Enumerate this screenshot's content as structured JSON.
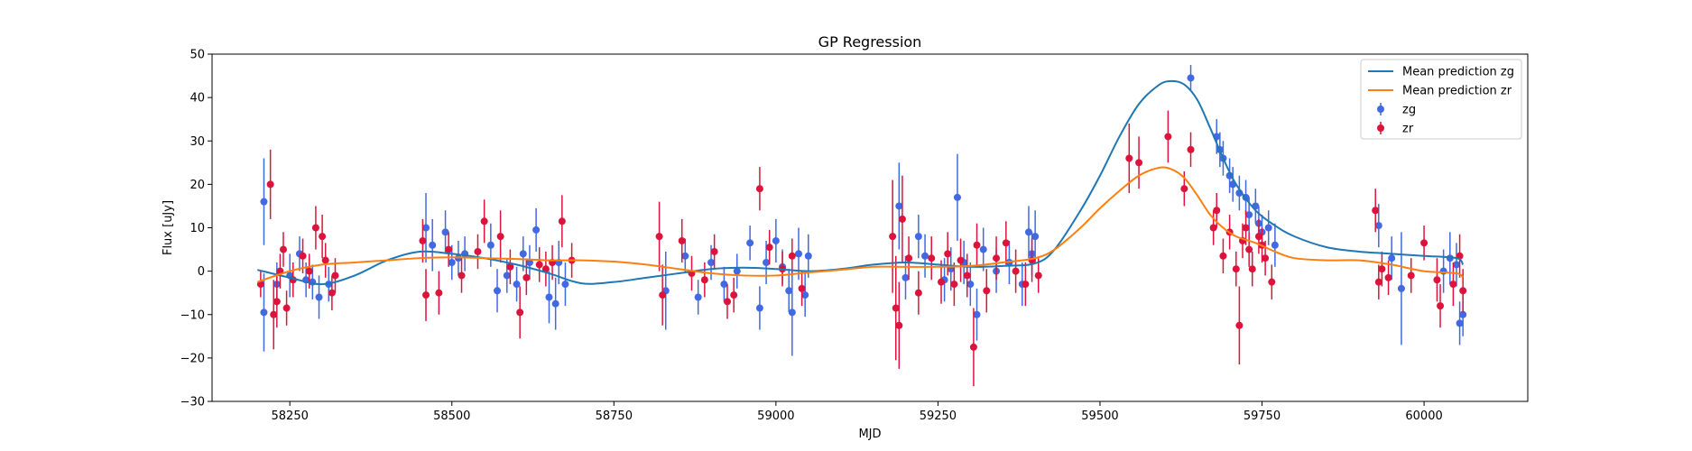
{
  "chart_data": {
    "type": "scatter",
    "title": "GP Regression",
    "xlabel": "MJD",
    "ylabel": "Flux [uJy]",
    "xlim": [
      58130,
      60160
    ],
    "ylim": [
      -30,
      50
    ],
    "xticks": [
      58250,
      58500,
      58750,
      59000,
      59250,
      59500,
      59750,
      60000
    ],
    "yticks": [
      -30,
      -20,
      -10,
      0,
      10,
      20,
      30,
      40,
      50
    ],
    "grid": false,
    "legend_position": "top-right",
    "legend": [
      "Mean prediction zg",
      "Mean prediction zr",
      "zg",
      "zr"
    ],
    "colors": {
      "zg_line": "#1f77b4",
      "zr_line": "#ff7f0e",
      "zg_points": "#4169e1",
      "zr_points": "#dc143c"
    },
    "series": [
      {
        "name": "Mean prediction zg",
        "kind": "line",
        "color": "#1f77b4",
        "x": [
          58200,
          58250,
          58300,
          58350,
          58400,
          58450,
          58500,
          58550,
          58600,
          58650,
          58700,
          58750,
          58800,
          58850,
          58900,
          58950,
          59000,
          59050,
          59100,
          59150,
          59200,
          59250,
          59300,
          59350,
          59400,
          59430,
          59470,
          59500,
          59530,
          59560,
          59590,
          59610,
          59630,
          59650,
          59670,
          59690,
          59710,
          59740,
          59770,
          59800,
          59850,
          59900,
          59950,
          60000,
          60050,
          60060
        ],
        "y": [
          0.3,
          -1.5,
          -3,
          -1,
          2.5,
          4.5,
          4,
          3,
          1.5,
          -0.5,
          -2.8,
          -2.5,
          -1.5,
          -0.5,
          0.5,
          0.8,
          0.5,
          0,
          0.5,
          1.5,
          2,
          1.5,
          1,
          1.2,
          1.8,
          5,
          14,
          22,
          31,
          38.5,
          42.8,
          43.8,
          43,
          39.5,
          33,
          26,
          20,
          14,
          10.5,
          8,
          5.5,
          4.5,
          4,
          3.5,
          3,
          1.5
        ]
      },
      {
        "name": "Mean prediction zr",
        "kind": "line",
        "color": "#ff7f0e",
        "x": [
          58200,
          58250,
          58300,
          58350,
          58400,
          58450,
          58500,
          58550,
          58600,
          58650,
          58700,
          58750,
          58800,
          58850,
          58900,
          58950,
          59000,
          59050,
          59100,
          59150,
          59200,
          59250,
          59300,
          59350,
          59400,
          59430,
          59470,
          59500,
          59530,
          59560,
          59590,
          59610,
          59630,
          59650,
          59670,
          59690,
          59710,
          59740,
          59770,
          59800,
          59850,
          59900,
          59950,
          60000,
          60050,
          60060
        ],
        "y": [
          -2.5,
          0,
          1.5,
          2,
          2.5,
          3,
          3.2,
          3,
          2.8,
          2.5,
          2.5,
          2.2,
          1.5,
          0.5,
          -0.5,
          -1,
          -1,
          -0.3,
          0.3,
          1,
          1,
          1,
          1.2,
          2,
          3,
          5,
          10,
          14.5,
          18.5,
          22,
          23.8,
          23.5,
          21.5,
          17.5,
          13,
          10,
          8,
          6.5,
          4.5,
          3,
          2.5,
          2.5,
          1.5,
          0,
          -0.5,
          -1.5
        ]
      },
      {
        "name": "zg",
        "kind": "errorbar",
        "color": "#4169e1",
        "points": [
          [
            58210,
            16,
            10
          ],
          [
            58210,
            -9.5,
            9
          ],
          [
            58230,
            -3,
            5
          ],
          [
            58250,
            -1,
            5
          ],
          [
            58265,
            4,
            4
          ],
          [
            58275,
            -2,
            4
          ],
          [
            58285,
            -2.5,
            4
          ],
          [
            58295,
            -6,
            5
          ],
          [
            58310,
            -3,
            4
          ],
          [
            58460,
            10,
            8
          ],
          [
            58470,
            6,
            6
          ],
          [
            58490,
            9,
            5
          ],
          [
            58500,
            2,
            4
          ],
          [
            58510,
            3,
            4
          ],
          [
            58520,
            4,
            4
          ],
          [
            58560,
            6,
            5
          ],
          [
            58570,
            -4.5,
            5
          ],
          [
            58585,
            -1,
            4
          ],
          [
            58600,
            -3,
            4
          ],
          [
            58610,
            4,
            4
          ],
          [
            58620,
            2,
            4
          ],
          [
            58630,
            9.5,
            5
          ],
          [
            58650,
            -6,
            6
          ],
          [
            58660,
            -7.5,
            6
          ],
          [
            58665,
            2,
            5
          ],
          [
            58675,
            -3,
            5
          ],
          [
            58830,
            -4.5,
            9
          ],
          [
            58860,
            3.5,
            4
          ],
          [
            58880,
            -6,
            4
          ],
          [
            58900,
            2,
            4
          ],
          [
            58920,
            -3,
            4
          ],
          [
            58940,
            0,
            4
          ],
          [
            58960,
            6.5,
            4
          ],
          [
            58975,
            -8.5,
            5
          ],
          [
            58985,
            2,
            5
          ],
          [
            59000,
            7,
            5
          ],
          [
            59010,
            1,
            4
          ],
          [
            59020,
            -4.5,
            5
          ],
          [
            59025,
            -9.5,
            10
          ],
          [
            59035,
            4,
            6
          ],
          [
            59045,
            -5.5,
            5
          ],
          [
            59050,
            3.5,
            5
          ],
          [
            59190,
            15,
            10
          ],
          [
            59200,
            -1.5,
            5
          ],
          [
            59220,
            8,
            5
          ],
          [
            59230,
            3.5,
            5
          ],
          [
            59260,
            -2,
            5
          ],
          [
            59270,
            0.5,
            5
          ],
          [
            59280,
            17,
            10
          ],
          [
            59290,
            2,
            5
          ],
          [
            59300,
            -3,
            5
          ],
          [
            59310,
            -10,
            6
          ],
          [
            59320,
            5,
            5
          ],
          [
            59340,
            0,
            5
          ],
          [
            59360,
            2,
            5
          ],
          [
            59380,
            -3,
            5
          ],
          [
            59390,
            9,
            6
          ],
          [
            59395,
            4,
            5
          ],
          [
            59400,
            8,
            6
          ],
          [
            59640,
            44.5,
            3
          ],
          [
            59680,
            31,
            4
          ],
          [
            59685,
            28,
            4
          ],
          [
            59690,
            26,
            4
          ],
          [
            59700,
            22,
            4
          ],
          [
            59705,
            20,
            4
          ],
          [
            59715,
            18,
            4
          ],
          [
            59725,
            17,
            4
          ],
          [
            59730,
            13,
            4
          ],
          [
            59740,
            15,
            4
          ],
          [
            59745,
            11,
            4
          ],
          [
            59750,
            9,
            4
          ],
          [
            59760,
            10,
            4
          ],
          [
            59770,
            6,
            5
          ],
          [
            59930,
            10.5,
            5
          ],
          [
            59950,
            3,
            5
          ],
          [
            59965,
            -4,
            13
          ],
          [
            60030,
            0,
            5
          ],
          [
            60040,
            3,
            6
          ],
          [
            60050,
            1.5,
            5
          ],
          [
            60055,
            -12,
            5
          ],
          [
            60060,
            -10,
            5
          ]
        ]
      },
      {
        "name": "zr",
        "kind": "errorbar",
        "color": "#dc143c",
        "points": [
          [
            58205,
            -3,
            3
          ],
          [
            58220,
            20,
            8
          ],
          [
            58225,
            -10,
            8
          ],
          [
            58230,
            -7,
            6
          ],
          [
            58235,
            0,
            4
          ],
          [
            58240,
            5,
            4
          ],
          [
            58245,
            -8.5,
            4
          ],
          [
            58255,
            -2,
            4
          ],
          [
            58270,
            3.5,
            4
          ],
          [
            58280,
            0,
            4
          ],
          [
            58290,
            10,
            5
          ],
          [
            58300,
            8,
            5
          ],
          [
            58305,
            2.5,
            4
          ],
          [
            58315,
            -5,
            4
          ],
          [
            58320,
            -1,
            4
          ],
          [
            58455,
            7,
            5
          ],
          [
            58460,
            -5.5,
            6
          ],
          [
            58480,
            -5,
            5
          ],
          [
            58495,
            5,
            4
          ],
          [
            58515,
            -1,
            4
          ],
          [
            58540,
            4.5,
            4
          ],
          [
            58550,
            11.5,
            5
          ],
          [
            58575,
            8,
            6
          ],
          [
            58590,
            1,
            4
          ],
          [
            58605,
            -9.5,
            6
          ],
          [
            58615,
            -1.5,
            4
          ],
          [
            58635,
            1.5,
            4
          ],
          [
            58645,
            0.5,
            4
          ],
          [
            58655,
            2,
            4
          ],
          [
            58670,
            11.5,
            6
          ],
          [
            58685,
            2.5,
            4
          ],
          [
            58820,
            8,
            8
          ],
          [
            58825,
            -5.5,
            7
          ],
          [
            58855,
            7,
            5
          ],
          [
            58870,
            -0.5,
            4
          ],
          [
            58890,
            -2,
            4
          ],
          [
            58905,
            4.5,
            4
          ],
          [
            58925,
            -7,
            4
          ],
          [
            58935,
            -5.5,
            4
          ],
          [
            58975,
            19,
            5
          ],
          [
            58990,
            5.5,
            4
          ],
          [
            59010,
            0.5,
            4
          ],
          [
            59025,
            3.5,
            4
          ],
          [
            59040,
            -4,
            4
          ],
          [
            59180,
            8,
            13
          ],
          [
            59185,
            -8.5,
            12
          ],
          [
            59190,
            -12.5,
            10
          ],
          [
            59195,
            12,
            10
          ],
          [
            59205,
            3,
            5
          ],
          [
            59220,
            -5,
            5
          ],
          [
            59240,
            3,
            5
          ],
          [
            59255,
            -2.5,
            5
          ],
          [
            59265,
            4,
            5
          ],
          [
            59275,
            -3,
            5
          ],
          [
            59285,
            2.5,
            5
          ],
          [
            59295,
            -1,
            5
          ],
          [
            59305,
            -17.5,
            9
          ],
          [
            59310,
            6,
            5
          ],
          [
            59325,
            -4.5,
            5
          ],
          [
            59340,
            3,
            5
          ],
          [
            59355,
            6.5,
            5
          ],
          [
            59370,
            0,
            5
          ],
          [
            59385,
            -3,
            5
          ],
          [
            59395,
            2.5,
            5
          ],
          [
            59405,
            -1,
            4
          ],
          [
            59545,
            26,
            8
          ],
          [
            59560,
            25,
            6
          ],
          [
            59605,
            31,
            6
          ],
          [
            59630,
            19,
            4
          ],
          [
            59640,
            28,
            4
          ],
          [
            59675,
            10,
            4
          ],
          [
            59680,
            14,
            4
          ],
          [
            59690,
            3.5,
            4
          ],
          [
            59700,
            9,
            4
          ],
          [
            59710,
            0.5,
            4
          ],
          [
            59715,
            -12.5,
            9
          ],
          [
            59720,
            7,
            4
          ],
          [
            59725,
            10,
            4
          ],
          [
            59730,
            5,
            4
          ],
          [
            59735,
            0.5,
            4
          ],
          [
            59745,
            8,
            4
          ],
          [
            59750,
            6,
            4
          ],
          [
            59755,
            3,
            4
          ],
          [
            59765,
            -2.5,
            4
          ],
          [
            59925,
            14,
            5
          ],
          [
            59930,
            -2.5,
            4
          ],
          [
            59935,
            0.5,
            4
          ],
          [
            59945,
            -1.5,
            4
          ],
          [
            59980,
            -1,
            4
          ],
          [
            60000,
            6.5,
            4
          ],
          [
            60020,
            -2,
            5
          ],
          [
            60025,
            -8,
            5
          ],
          [
            60045,
            -3,
            5
          ],
          [
            60055,
            3.5,
            5
          ],
          [
            60060,
            -4.5,
            5
          ]
        ]
      }
    ]
  }
}
